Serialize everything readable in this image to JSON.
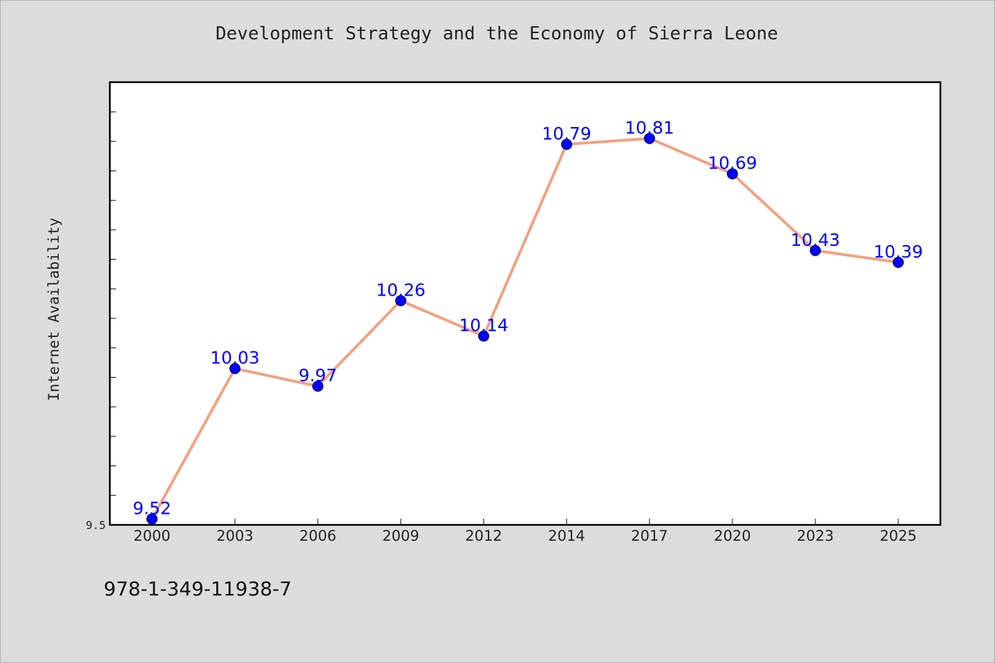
{
  "chart_data": {
    "type": "line",
    "title": "Development Strategy and the Economy of Sierra Leone",
    "ylabel": "Internet Availability",
    "xlabel": "",
    "categories": [
      "2000",
      "2003",
      "2006",
      "2009",
      "2012",
      "2014",
      "2017",
      "2020",
      "2023",
      "2025"
    ],
    "series": [
      {
        "values": [
          9.52,
          10.03,
          9.97,
          10.26,
          10.14,
          10.79,
          10.81,
          10.69,
          10.43,
          10.39
        ],
        "labels": [
          "9.52",
          "10.03",
          "9.97",
          "10.26",
          "10.14",
          "10.79",
          "10.81",
          "10.69",
          "10.43",
          "10.39"
        ]
      }
    ],
    "ylim": [
      9.5,
      11.0
    ],
    "y_tick_labels": [
      "9.5"
    ],
    "grid": false,
    "colors": {
      "line": "#f4a07e",
      "marker": "#0000ff",
      "data_label": "#0000ff",
      "plot_background": "#ffffff",
      "page_background": "#dcdcdc"
    }
  },
  "footer_text": "978-1-349-11938-7"
}
